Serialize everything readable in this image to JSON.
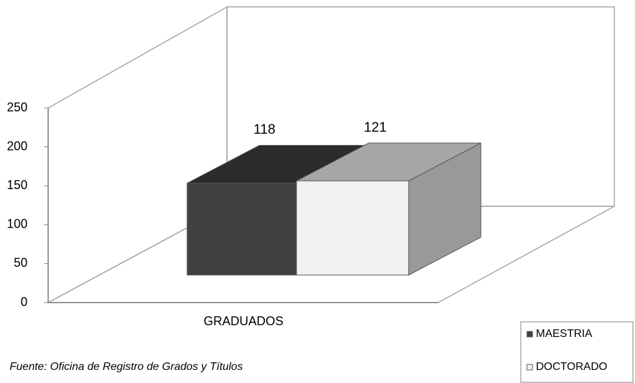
{
  "chart_data": {
    "type": "bar3d",
    "categories": [
      "GRADUADOS"
    ],
    "series": [
      {
        "name": "MAESTRIA",
        "color": "#404040",
        "values": [
          118
        ]
      },
      {
        "name": "DOCTORADO",
        "color": "#f2f2f2",
        "values": [
          121
        ]
      }
    ],
    "ylim": [
      0,
      250
    ],
    "yticks": [
      0,
      50,
      100,
      150,
      200,
      250
    ],
    "note": "Fuente: Oficina de Registro de Grados y Títulos",
    "legend": "bottom-right"
  }
}
